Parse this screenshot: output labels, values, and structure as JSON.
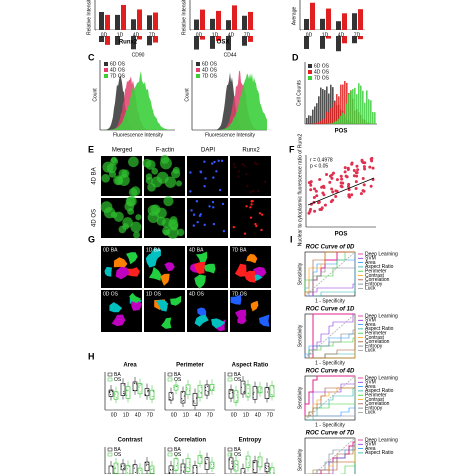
{
  "panel_letters": [
    "C",
    "D",
    "E",
    "F",
    "G",
    "H",
    "I"
  ],
  "days": [
    "0D",
    "1D",
    "4D",
    "7D"
  ],
  "top_row": {
    "y_label": "Relative Intensity",
    "genes": [
      "Runx2",
      "OSX"
    ],
    "right_y_label": "Average"
  },
  "panel_c": {
    "legend": [
      "6D OS",
      "4D OS",
      "7D OS"
    ],
    "titles": [
      "CD90",
      "CD44"
    ],
    "y_label": "Count",
    "x_label": "Fluorescence Intensity"
  },
  "panel_d": {
    "legend": [
      "6D OS",
      "4D OS",
      "7D OS"
    ],
    "y_label": "Cell Counts",
    "x_label": "POS"
  },
  "panel_e": {
    "columns": [
      "Merged",
      "F-actin",
      "DAPI",
      "Runx2"
    ],
    "rows": [
      "4D BA",
      "4D OS"
    ]
  },
  "panel_f": {
    "stats": [
      "r = 0.4978",
      "p < 0.05"
    ],
    "y_label": "Nuclear to cytoplasmic fluorescence ratio of Runx2",
    "x_label": "POS"
  },
  "panel_g": {
    "labels": [
      "0D BA",
      "1D BA",
      "4D BA",
      "7D BA",
      "0D OS",
      "1D OS",
      "4D OS",
      "7D OS"
    ]
  },
  "panel_h": {
    "titles": [
      "Area",
      "Perimeter",
      "Aspect Ratio",
      "Contrast",
      "Correlation",
      "Entropy"
    ],
    "legend": [
      "BA",
      "OS"
    ]
  },
  "panel_i": {
    "titles": [
      "ROC Curve of 0D",
      "ROC Curve of 1D",
      "ROC Curve of 4D",
      "ROC Curve of 7D"
    ],
    "legend": [
      "Deep Learning",
      "SVM",
      "Area",
      "Aspect Ratio",
      "Perimeter",
      "Contrast",
      "Correlation",
      "Entropy",
      "Luck"
    ],
    "x_label": "1 - Specificity",
    "y_label": "Sensitivity"
  }
}
